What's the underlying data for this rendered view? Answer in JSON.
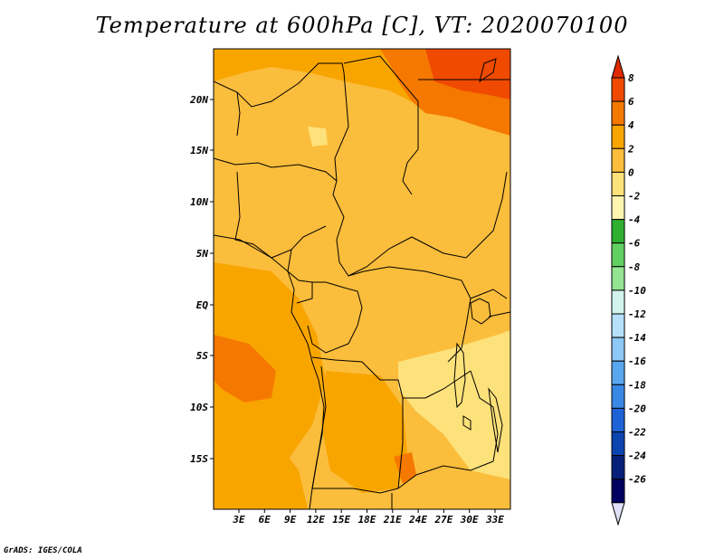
{
  "title": "Temperature at 600hPa [C], VT: 2020070100",
  "credit": "GrADS: IGES/COLA",
  "lat_labels": [
    "20N",
    "15N",
    "10N",
    "5N",
    "EQ",
    "5S",
    "10S",
    "15S"
  ],
  "lon_labels": [
    "3E",
    "6E",
    "9E",
    "12E",
    "15E",
    "18E",
    "21E",
    "24E",
    "27E",
    "30E",
    "33E"
  ],
  "colorbar": {
    "labels": [
      "8",
      "6",
      "4",
      "2",
      "0",
      "-2",
      "-4",
      "-6",
      "-8",
      "-10",
      "-12",
      "-14",
      "-16",
      "-18",
      "-20",
      "-22",
      "-24",
      "-26"
    ],
    "colors": [
      "#dd2a00",
      "#f04a00",
      "#f57800",
      "#f9a500",
      "#fbbd3c",
      "#fde17a",
      "#fff5b0",
      "#30b030",
      "#62d062",
      "#94e494",
      "#d0f4ec",
      "#b6e0fa",
      "#8ec8f6",
      "#5aa7ef",
      "#3a88e6",
      "#1e62d8",
      "#0c44b0",
      "#07207a",
      "#000060",
      "#e0e0f8"
    ]
  },
  "map_fill": {
    "base": "#fbbd3c",
    "warm": "#f9a500",
    "hot": "#f57800",
    "hotter": "#f04a00",
    "cool": "#fde17a"
  }
}
